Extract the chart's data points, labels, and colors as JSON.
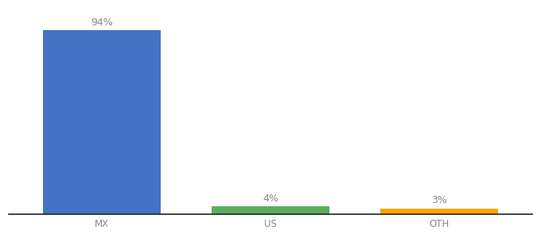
{
  "categories": [
    "MX",
    "US",
    "OTH"
  ],
  "values": [
    94,
    4,
    3
  ],
  "bar_colors": [
    "#4472C4",
    "#5BAD5B",
    "#FFA500"
  ],
  "label_texts": [
    "94%",
    "4%",
    "3%"
  ],
  "label_color": "#888888",
  "ylim": [
    0,
    105
  ],
  "background_color": "#ffffff",
  "label_fontsize": 9,
  "tick_fontsize": 8.5,
  "bar_width": 0.7,
  "tick_color": "#888888"
}
